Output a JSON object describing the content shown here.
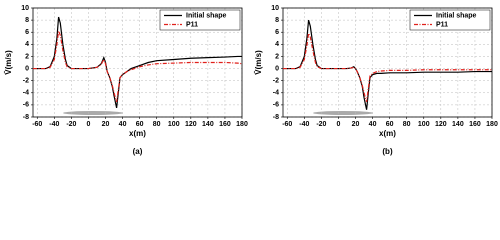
{
  "chart_data": [
    {
      "type": "line",
      "caption": "(a)",
      "xlabel": "x(m)",
      "ylabel": "V̄(m/s)",
      "x": [
        -65,
        -50,
        -45,
        -40,
        -37,
        -35,
        -33,
        -30,
        -27,
        -25,
        -20,
        -10,
        0,
        10,
        15,
        18,
        20,
        22,
        25,
        28,
        30,
        33,
        35,
        37,
        40,
        45,
        50,
        60,
        70,
        80,
        100,
        120,
        140,
        160,
        175,
        180
      ],
      "series": [
        {
          "name": "Initial shape",
          "color": "#000000",
          "dash": "solid",
          "values": [
            0,
            0,
            0.3,
            2,
            5,
            8.5,
            7.5,
            4,
            1.5,
            0.5,
            0,
            0,
            0,
            0.2,
            0.8,
            1.8,
            1,
            -0.5,
            -1.5,
            -3,
            -4.5,
            -6.5,
            -4,
            -1.5,
            -1,
            -0.5,
            0,
            0.5,
            1,
            1.3,
            1.5,
            1.7,
            1.8,
            1.9,
            2,
            2
          ]
        },
        {
          "name": "P11",
          "color": "#e0201b",
          "dash": "dashdot",
          "values": [
            0,
            0,
            0.2,
            1.5,
            4,
            6.2,
            5.5,
            3,
            1,
            0.3,
            0,
            0,
            0,
            0.2,
            0.7,
            1.5,
            0.8,
            -0.5,
            -1.5,
            -2.8,
            -4,
            -5.5,
            -3.5,
            -1.5,
            -1,
            -0.5,
            -0.2,
            0.3,
            0.6,
            0.8,
            0.9,
            1,
            1,
            1,
            0.9,
            0.8
          ]
        }
      ],
      "xlim": [
        -65,
        180
      ],
      "xticks": [
        -60,
        -40,
        -20,
        0,
        20,
        40,
        60,
        80,
        100,
        120,
        140,
        160,
        180
      ],
      "ylim": [
        -8,
        10
      ],
      "yticks": [
        -8,
        -6,
        -4,
        -2,
        0,
        2,
        4,
        6,
        8,
        10
      ],
      "grid": true,
      "legend": "upper right"
    },
    {
      "type": "line",
      "caption": "(b)",
      "xlabel": "x(m)",
      "ylabel": "V̄(m/s)",
      "x": [
        -65,
        -50,
        -45,
        -40,
        -37,
        -35,
        -33,
        -30,
        -27,
        -25,
        -20,
        -10,
        0,
        10,
        15,
        18,
        20,
        22,
        25,
        28,
        30,
        33,
        35,
        37,
        40,
        45,
        50,
        60,
        70,
        80,
        100,
        120,
        140,
        160,
        175,
        180
      ],
      "series": [
        {
          "name": "Initial shape",
          "color": "#000000",
          "dash": "solid",
          "values": [
            0,
            0,
            0.3,
            2,
            5,
            8,
            7,
            4,
            1.5,
            0.5,
            0,
            0,
            0,
            0,
            0.1,
            0.3,
            0,
            -0.5,
            -1.5,
            -3,
            -4.8,
            -6.8,
            -4,
            -1.5,
            -1,
            -0.8,
            -0.8,
            -0.7,
            -0.7,
            -0.7,
            -0.6,
            -0.6,
            -0.6,
            -0.5,
            -0.5,
            -0.5
          ]
        },
        {
          "name": "P11",
          "color": "#e0201b",
          "dash": "dashdot",
          "values": [
            0,
            0,
            0.2,
            1.5,
            3.8,
            5.8,
            5.2,
            3,
            1,
            0.3,
            0,
            0,
            0,
            0,
            0.1,
            0.2,
            0,
            -0.5,
            -1.5,
            -2.8,
            -4,
            -5.5,
            -3.3,
            -1.2,
            -0.8,
            -0.5,
            -0.4,
            -0.3,
            -0.3,
            -0.3,
            -0.2,
            -0.2,
            -0.2,
            -0.2,
            -0.2,
            -0.2
          ]
        }
      ],
      "xlim": [
        -65,
        180
      ],
      "xticks": [
        -60,
        -40,
        -20,
        0,
        20,
        40,
        60,
        80,
        100,
        120,
        140,
        160,
        180
      ],
      "ylim": [
        -8,
        10
      ],
      "yticks": [
        -8,
        -6,
        -4,
        -2,
        0,
        2,
        4,
        6,
        8,
        10
      ],
      "grid": true,
      "legend": "upper right"
    }
  ]
}
